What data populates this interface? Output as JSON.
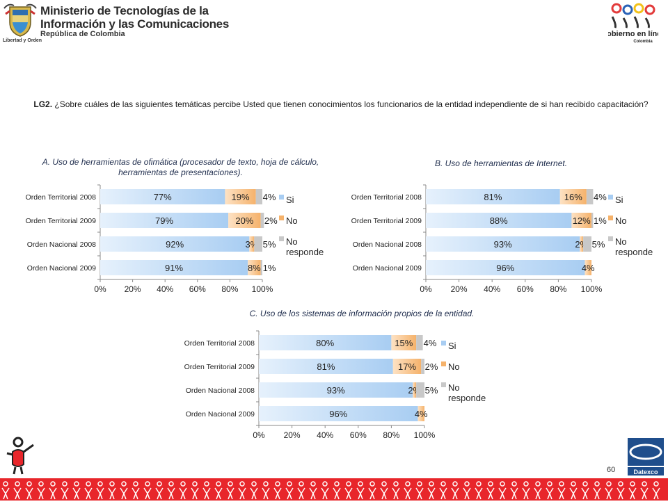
{
  "header": {
    "ministry_line1": "Ministerio de Tecnologías de la",
    "ministry_line2": "Información y las Comunicaciones",
    "ministry_sub": "República de Colombia",
    "seal_motto": "Libertad y Orden",
    "gobierno_logo_text": "Gobierno en línea",
    "gobierno_logo_sub": "Colombia"
  },
  "question": {
    "code": "LG2.",
    "text": "¿Sobre cuáles de las siguientes temáticas percibe Usted que tienen conocimientos los funcionarios de la entidad independiente de si han recibido capacitación?"
  },
  "footer": {
    "page_number": "60",
    "datexco_logo_text": "Datexco"
  },
  "colors": {
    "si": "#a8cdf2",
    "no": "#f5b26b",
    "nr": "#c8c8c8"
  },
  "chart_data": [
    {
      "type": "bar",
      "orientation": "horizontal",
      "stacked": true,
      "title": "A. Uso de herramientas  de ofimática (procesador  de texto, hoja de cálculo, herramientas  de presentaciones).",
      "categories": [
        "Orden Territorial 2008",
        "Orden Territorial 2009",
        "Orden Nacional 2008",
        "Orden Nacional 2009"
      ],
      "series": [
        {
          "name": "Si",
          "values": [
            77,
            79,
            92,
            91
          ],
          "labels": [
            "77%",
            "79%",
            "92%",
            "91%"
          ]
        },
        {
          "name": "No",
          "values": [
            19,
            20,
            3,
            8
          ],
          "labels": [
            "19%",
            "20%",
            "3%",
            "8%"
          ]
        },
        {
          "name": "No responde",
          "values": [
            4,
            2,
            5,
            1
          ],
          "labels": [
            "4%",
            "2%",
            "5%",
            "1%"
          ]
        }
      ],
      "xlim": [
        0,
        100
      ],
      "x_ticks": [
        "0%",
        "20%",
        "40%",
        "60%",
        "80%",
        "100%"
      ],
      "legend": "right"
    },
    {
      "type": "bar",
      "orientation": "horizontal",
      "stacked": true,
      "title": "B. Uso de  herramientas de Internet.",
      "categories": [
        "Orden Territorial 2008",
        "Orden Territorial 2009",
        "Orden Nacional 2008",
        "Orden Nacional 2009"
      ],
      "series": [
        {
          "name": "Si",
          "values": [
            81,
            88,
            93,
            96
          ],
          "labels": [
            "81%",
            "88%",
            "93%",
            "96%"
          ]
        },
        {
          "name": "No",
          "values": [
            16,
            12,
            2,
            4
          ],
          "labels": [
            "16%",
            "12%",
            "2%",
            "4%"
          ]
        },
        {
          "name": "No responde",
          "values": [
            4,
            1,
            5,
            0
          ],
          "labels": [
            "4%",
            "1%",
            "5%",
            ""
          ]
        }
      ],
      "xlim": [
        0,
        100
      ],
      "x_ticks": [
        "0%",
        "20%",
        "40%",
        "60%",
        "80%",
        "100%"
      ],
      "legend": "right"
    },
    {
      "type": "bar",
      "orientation": "horizontal",
      "stacked": true,
      "title": "C. Uso de los sistemas de información propios de la entidad.",
      "categories": [
        "Orden Territorial 2008",
        "Orden Territorial 2009",
        "Orden Nacional 2008",
        "Orden Nacional 2009"
      ],
      "series": [
        {
          "name": "Si",
          "values": [
            80,
            81,
            93,
            96
          ],
          "labels": [
            "80%",
            "81%",
            "93%",
            "96%"
          ]
        },
        {
          "name": "No",
          "values": [
            15,
            17,
            2,
            4
          ],
          "labels": [
            "15%",
            "17%",
            "2%",
            "4%"
          ]
        },
        {
          "name": "No responde",
          "values": [
            4,
            2,
            5,
            0
          ],
          "labels": [
            "4%",
            "2%",
            "5%",
            ""
          ]
        }
      ],
      "xlim": [
        0,
        100
      ],
      "x_ticks": [
        "0%",
        "20%",
        "40%",
        "60%",
        "80%",
        "100%"
      ],
      "legend": "right"
    }
  ]
}
